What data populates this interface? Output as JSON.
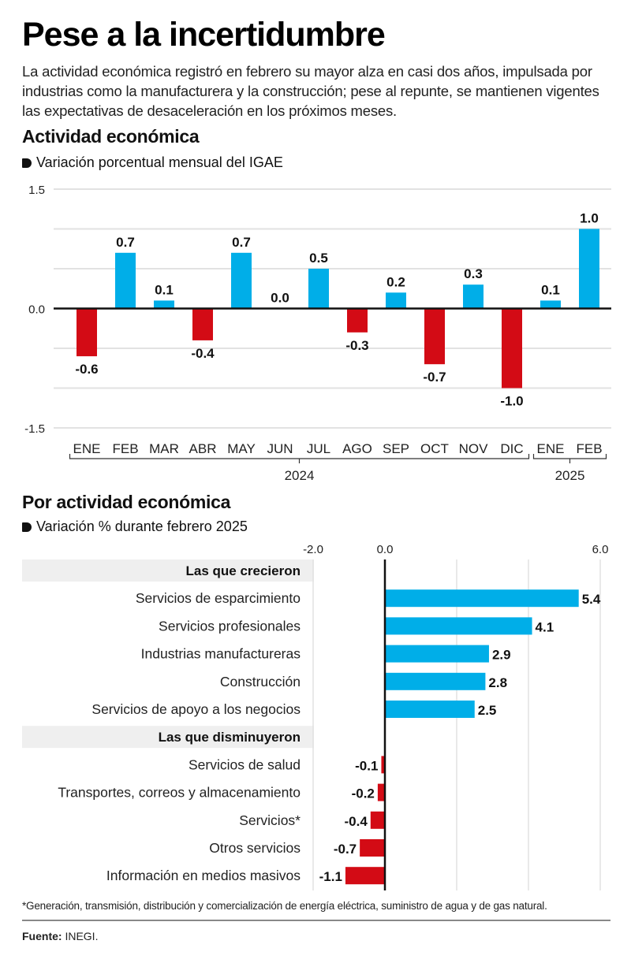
{
  "header": {
    "title": "Pese a la incertidumbre",
    "lede": "La actividad económica registró en febrero su mayor alza en casi dos años, impulsada por industrias como la manufacturera y la construcción; pese al repunte, se mantienen vigentes las expectativas de desaceleración en los próximos meses."
  },
  "colors": {
    "positive": "#00aee8",
    "negative": "#d30b15",
    "gridline": "#e2e2e2",
    "axis": "#111111",
    "group_band": "#efefef"
  },
  "chart_data": [
    {
      "type": "bar",
      "title": "Actividad económica",
      "subtitle": "Variación porcentual mensual del IGAE",
      "xlabel": "",
      "ylabel": "",
      "ylim": [
        -1.5,
        1.5
      ],
      "yticks": [
        -1.5,
        -1.0,
        -0.5,
        0.0,
        0.5,
        1.0,
        1.5
      ],
      "ytick_labels": [
        "-1.5",
        "",
        "",
        "0.0",
        "",
        "",
        "1.5"
      ],
      "grid": true,
      "categories": [
        "ENE",
        "FEB",
        "MAR",
        "ABR",
        "MAY",
        "JUN",
        "JUL",
        "AGO",
        "SEP",
        "OCT",
        "NOV",
        "DIC",
        "ENE",
        "FEB"
      ],
      "values": [
        -0.6,
        0.7,
        0.1,
        -0.4,
        0.7,
        0.0,
        0.5,
        -0.3,
        0.2,
        -0.7,
        0.3,
        -1.0,
        0.1,
        1.0
      ],
      "data_labels": [
        "-0.6",
        "0.7",
        "0.1",
        "-0.4",
        "0.7",
        "0.0",
        "0.5",
        "-0.3",
        "0.2",
        "-0.7",
        "0.3",
        "-1.0",
        "0.1",
        "1.0"
      ],
      "year_groups": [
        {
          "label": "2024",
          "start": 0,
          "end": 11
        },
        {
          "label": "2025",
          "start": 12,
          "end": 13
        }
      ]
    },
    {
      "type": "bar",
      "orientation": "horizontal",
      "title": "Por actividad económica",
      "subtitle": "Variación % durante febrero 2025",
      "xlim": [
        -2.0,
        6.0
      ],
      "xticks": [
        -2.0,
        0.0,
        2.0,
        4.0,
        6.0
      ],
      "xtick_labels": [
        "-2.0",
        "0.0",
        "",
        "",
        "6.0"
      ],
      "grid": true,
      "groups": [
        {
          "label": "Las que crecieron",
          "categories": [
            "Servicios de esparcimiento",
            "Servicios profesionales",
            "Industrias manufactureras",
            "Construcción",
            "Servicios de apoyo a los negocios"
          ],
          "values": [
            5.4,
            4.1,
            2.9,
            2.8,
            2.5
          ],
          "data_labels": [
            "5.4",
            "4.1",
            "2.9",
            "2.8",
            "2.5"
          ]
        },
        {
          "label": "Las que disminuyeron",
          "categories": [
            "Servicios de salud",
            "Transportes, correos y almacenamiento",
            "Servicios*",
            "Otros servicios",
            "Información en medios masivos"
          ],
          "values": [
            -0.1,
            -0.2,
            -0.4,
            -0.7,
            -1.1
          ],
          "data_labels": [
            "-0.1",
            "-0.2",
            "-0.4",
            "-0.7",
            "-1.1"
          ]
        }
      ]
    }
  ],
  "footer": {
    "footnote": "*Generación, transmisión, distribución y comercialización de energía eléctrica, suministro de agua y de gas natural.",
    "source_label": "Fuente:",
    "source_value": " INEGI."
  }
}
